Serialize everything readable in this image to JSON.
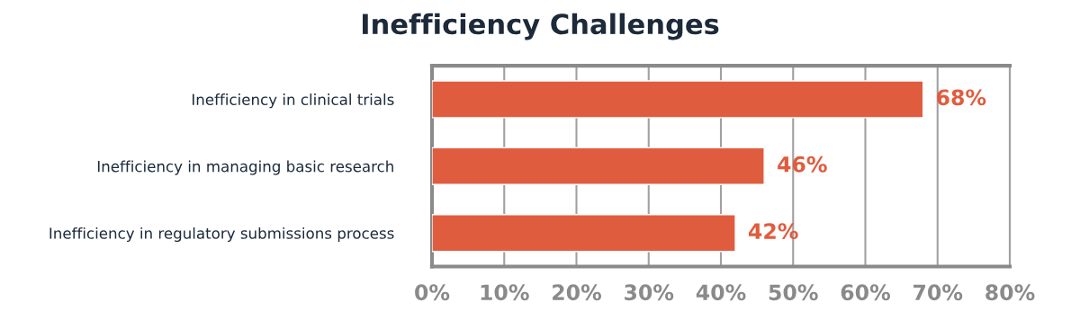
{
  "chart_data": {
    "type": "bar",
    "orientation": "horizontal",
    "title": "Inefficiency Challenges",
    "categories": [
      "Inefficiency in clinical trials",
      "Inefficiency in managing basic research",
      "Inefficiency in regulatory submissions process"
    ],
    "values": [
      68,
      46,
      42
    ],
    "value_labels": [
      "68%",
      "46%",
      "42%"
    ],
    "color": "#e05c3e",
    "xlim": [
      0,
      80
    ],
    "xticks": [
      {
        "value": 0,
        "label": "0%"
      },
      {
        "value": 10,
        "label": "10%"
      },
      {
        "value": 20,
        "label": "20%"
      },
      {
        "value": 30,
        "label": "30%"
      },
      {
        "value": 40,
        "label": "40%"
      },
      {
        "value": 50,
        "label": "50%"
      },
      {
        "value": 60,
        "label": "60%"
      },
      {
        "value": 70,
        "label": "70%"
      },
      {
        "value": 80,
        "label": "80%"
      }
    ],
    "grid": "x",
    "legend": false
  }
}
